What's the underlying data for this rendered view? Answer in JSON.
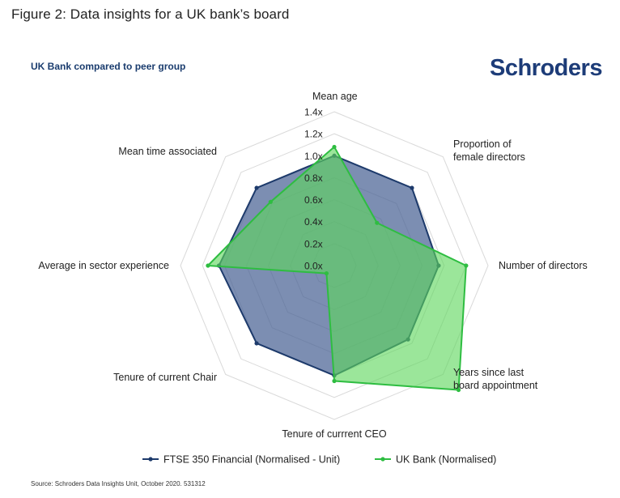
{
  "figure_title": "Figure 2: Data insights for a UK bank’s board",
  "subtitle": "UK Bank compared to peer group",
  "logo_text": "Schroders",
  "source": "Schroders Data Insights Unit, October 2020. 531312",
  "colors": {
    "peer_line": "#1d3a6b",
    "peer_fill": "#4a6394",
    "bank_line": "#2ebd41",
    "bank_fill": "#5ed65c",
    "grid": "#d9d9d9"
  },
  "chart_data": {
    "type": "radar",
    "title": "UK Bank compared to peer group",
    "axes": [
      {
        "lines": [
          "Mean age"
        ]
      },
      {
        "lines": [
          "Proportion of",
          "female directors"
        ]
      },
      {
        "lines": [
          "Number of directors"
        ]
      },
      {
        "lines": [
          "Years since last",
          "board appointment"
        ]
      },
      {
        "lines": [
          "Tenure of currrent CEO"
        ]
      },
      {
        "lines": [
          "Tenure of current Chair"
        ]
      },
      {
        "lines": [
          "Average in sector experience"
        ]
      },
      {
        "lines": [
          "Mean time associated"
        ]
      }
    ],
    "ticks": [
      "0.0x",
      "0.2x",
      "0.4x",
      "0.6x",
      "0.8x",
      "1.0x",
      "1.2x",
      "1.4x"
    ],
    "rlim": [
      0,
      1.4
    ],
    "series": [
      {
        "name": "FTSE 350 Financial (Normalised - Unit)",
        "values": [
          1.0,
          1.0,
          0.95,
          0.95,
          1.0,
          1.0,
          1.05,
          1.0
        ]
      },
      {
        "name": "UK Bank (Normalised)",
        "values": [
          1.08,
          0.55,
          1.2,
          1.6,
          1.05,
          0.1,
          1.15,
          0.82
        ]
      }
    ],
    "legend_position": "bottom"
  }
}
